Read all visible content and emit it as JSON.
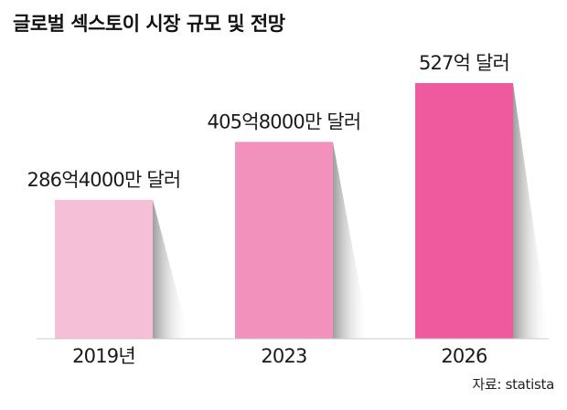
{
  "chart_data": {
    "type": "bar",
    "title": "글로벌 섹스토이 시장 규모 및 전망",
    "categories": [
      "2019년",
      "2023",
      "2026"
    ],
    "values": [
      286.4,
      405.8,
      527
    ],
    "value_labels": [
      "286억4000만 달러",
      "405억8000만 달러",
      "527억 달러"
    ],
    "unit": "억 달러",
    "colors": [
      "#f6bfd8",
      "#f391bd",
      "#ef5a9f"
    ],
    "source": "자료: statista",
    "xlabel": "",
    "ylabel": "",
    "grid": false
  }
}
